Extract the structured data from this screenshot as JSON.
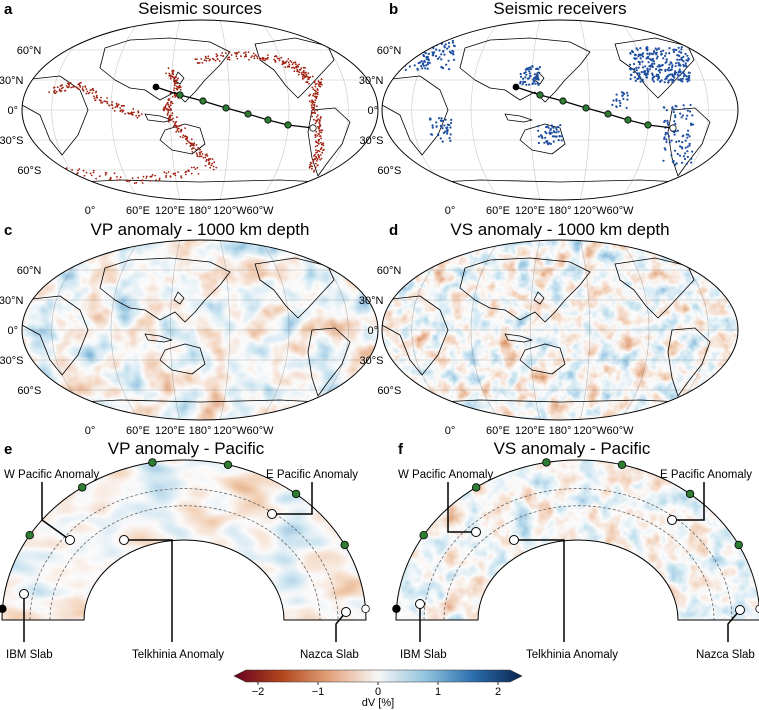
{
  "panels": {
    "a": {
      "letter": "a",
      "title": "Seismic sources"
    },
    "b": {
      "letter": "b",
      "title": "Seismic receivers"
    },
    "c": {
      "letter": "c",
      "title": "VP anomaly - 1000 km depth"
    },
    "d": {
      "letter": "d",
      "title": "VS anomaly - 1000 km depth"
    },
    "e": {
      "letter": "e",
      "title": "VP anomaly - Pacific"
    },
    "f": {
      "letter": "f",
      "title": "VS anomaly - Pacific"
    }
  },
  "map_axes": {
    "lat_labels": [
      "60°N",
      "30°N",
      "0°",
      "30°S",
      "60°S"
    ],
    "lon_labels": [
      "0°",
      "60°E",
      "120°E",
      "180°",
      "120°W",
      "60°W"
    ]
  },
  "annotations": {
    "w_pacific": "W Pacific Anomaly",
    "e_pacific": "E Pacific Anomaly",
    "ibm": "IBM Slab",
    "telkhinia": "Telkhinia Anomaly",
    "nazca": "Nazca Slab"
  },
  "colorbar": {
    "label": "dV [%]",
    "ticks": [
      "−2",
      "−1",
      "0",
      "1",
      "2"
    ],
    "tick_values": [
      -2,
      -1,
      0,
      1,
      2
    ],
    "range": [
      -2.5,
      2.5
    ],
    "colors": [
      "#67001f",
      "#b2471c",
      "#e3a27c",
      "#f7f7f7",
      "#8fc1dd",
      "#2c6ead",
      "#0b2450"
    ]
  },
  "colors": {
    "source_dots": "#a02010",
    "receiver_dots": "#1f4fa0",
    "path_line": "#000000",
    "path_nodes": "#2e7d32"
  }
}
